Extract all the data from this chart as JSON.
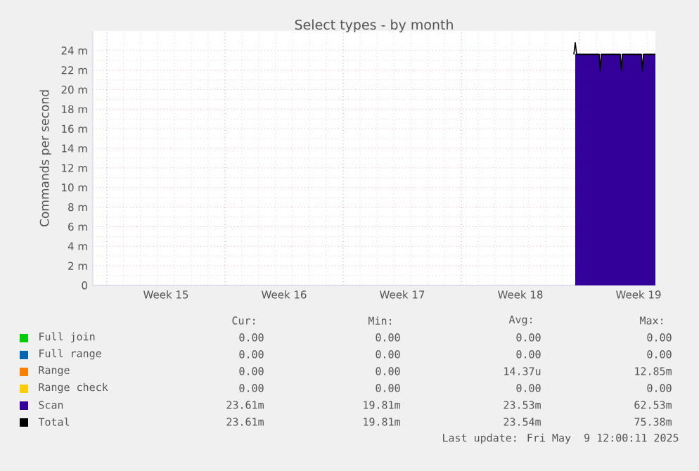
{
  "chart_data": {
    "type": "area",
    "title": "Select types - by month",
    "ylabel": "Commands per second",
    "xlim": [
      "2025-04-06T04:00",
      "2025-05-09T12:00"
    ],
    "ylim": [
      0,
      26
    ],
    "xticks": [
      {
        "value": "2025-04-07",
        "label": null
      },
      {
        "value": "2025-04-10T12:00",
        "label": "Week 15"
      },
      {
        "value": "2025-04-14",
        "label": null
      },
      {
        "value": "2025-04-17T12:00",
        "label": "Week 16"
      },
      {
        "value": "2025-04-21",
        "label": null
      },
      {
        "value": "2025-04-24T12:00",
        "label": "Week 17"
      },
      {
        "value": "2025-04-28",
        "label": null
      },
      {
        "value": "2025-05-01T12:00",
        "label": "Week 18"
      },
      {
        "value": "2025-05-05",
        "label": null
      },
      {
        "value": "2025-05-08T12:00",
        "label": "Week 19"
      }
    ],
    "yticks": [
      0,
      {
        "value": 2,
        "label": "2 m"
      },
      {
        "value": 4,
        "label": "4 m"
      },
      {
        "value": 6,
        "label": "6 m"
      },
      {
        "value": 8,
        "label": "8 m"
      },
      {
        "value": 10,
        "label": "10 m"
      },
      {
        "value": 12,
        "label": "12 m"
      },
      {
        "value": 14,
        "label": "14 m"
      },
      {
        "value": 16,
        "label": "16 m"
      },
      {
        "value": 18,
        "label": "18 m"
      },
      {
        "value": 20,
        "label": "20 m"
      },
      {
        "value": 22,
        "label": "22 m"
      },
      {
        "value": 24,
        "label": "24 m"
      }
    ],
    "grid": true,
    "legend": "bottom",
    "series": [
      {
        "name": "Full join",
        "color": "#00cc00"
      },
      {
        "name": "Full range",
        "color": "#0066b3"
      },
      {
        "name": "Range",
        "color": "#ff8000"
      },
      {
        "name": "Range check",
        "color": "#ffcc00"
      },
      {
        "name": "Scan",
        "color": "#330099",
        "x": [
          "2025-05-04T18:00",
          "2025-05-06T04:00",
          "2025-05-06T05:30",
          "2025-05-06T07:00",
          "2025-05-07T10:00",
          "2025-05-07T11:30",
          "2025-05-07T13:00",
          "2025-05-08T16:00",
          "2025-05-08T17:30",
          "2025-05-08T19:00",
          "2025-05-09T12:00"
        ],
        "values": [
          23.6,
          23.6,
          21.9,
          23.6,
          23.6,
          21.9,
          23.6,
          23.6,
          21.9,
          23.6,
          23.6
        ]
      },
      {
        "name": "Total",
        "color": "#000000",
        "type": "line",
        "x": [
          "2025-05-04T16:00",
          "2025-05-04T18:00",
          "2025-05-04T20:00",
          "2025-05-06T04:00",
          "2025-05-06T05:30",
          "2025-05-06T07:00",
          "2025-05-07T10:00",
          "2025-05-07T11:30",
          "2025-05-07T13:00",
          "2025-05-08T16:00",
          "2025-05-08T17:30",
          "2025-05-08T19:00",
          "2025-05-09T12:00"
        ],
        "values": [
          23.6,
          24.8,
          23.6,
          23.6,
          21.9,
          23.6,
          23.6,
          21.9,
          23.6,
          23.6,
          21.9,
          23.6,
          23.6
        ]
      }
    ],
    "annotations": [
      "Cur:",
      "Min:",
      "Avg:",
      "Max:",
      "0.00",
      "0.00",
      "0.00",
      "0.00",
      "0.00",
      "0.00",
      "0.00",
      "0.00",
      "0.00",
      "0.00",
      "14.37u",
      "12.85m",
      "0.00",
      "0.00",
      "0.00",
      "0.00",
      "23.61m",
      "19.81m",
      "23.53m",
      "62.53m",
      "23.61m",
      "19.81m",
      "23.54m",
      "75.38m",
      "Last update: Fri May  9 12:00:11 2025"
    ]
  }
}
